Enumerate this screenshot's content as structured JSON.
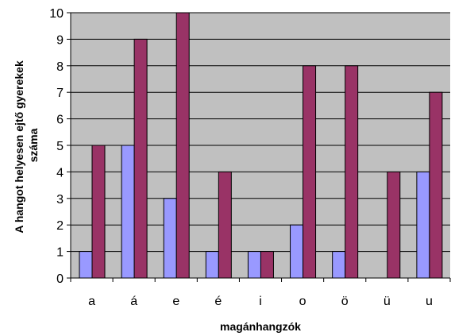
{
  "chart_data": {
    "type": "bar",
    "categories": [
      "a",
      "á",
      "e",
      "é",
      "i",
      "o",
      "ö",
      "ü",
      "u"
    ],
    "series": [
      {
        "values": [
          1,
          5,
          3,
          1,
          1,
          2,
          1,
          0,
          4
        ],
        "color": "#9999ff"
      },
      {
        "values": [
          5,
          9,
          10,
          4,
          1,
          8,
          8,
          4,
          7
        ],
        "color": "#993366"
      }
    ],
    "xlabel": "magánhangzók",
    "ylabel_line1": "A hangot helyesen ejtő gyerekek",
    "ylabel_line2": "száma",
    "ylim": [
      0,
      10
    ],
    "yticks": [
      0,
      1,
      2,
      3,
      4,
      5,
      6,
      7,
      8,
      9,
      10
    ],
    "grid": true,
    "plot_background": "#c0c0c0",
    "legend": "none"
  }
}
